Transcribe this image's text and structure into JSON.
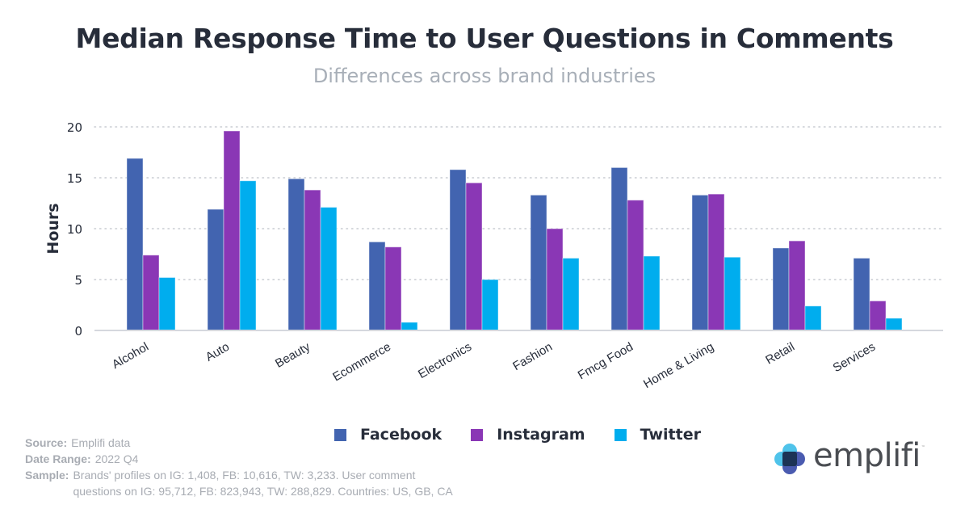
{
  "chart_data": {
    "type": "bar",
    "title": "Median Response Time to User Questions in Comments",
    "subtitle": "Differences across brand industries",
    "xlabel": "",
    "ylabel": "Hours",
    "ylim": [
      0,
      20
    ],
    "yticks": [
      0,
      5,
      10,
      15,
      20
    ],
    "grid": true,
    "legend_position": "bottom",
    "categories": [
      "Alcohol",
      "Auto",
      "Beauty",
      "Ecommerce",
      "Electronics",
      "Fashion",
      "Fmcg Food",
      "Home & Living",
      "Retail",
      "Services"
    ],
    "series": [
      {
        "name": "Facebook",
        "color": "#4264b0",
        "values": [
          16.9,
          11.9,
          14.9,
          8.7,
          15.8,
          13.3,
          16.0,
          13.3,
          8.1,
          7.1
        ]
      },
      {
        "name": "Instagram",
        "color": "#8a37b5",
        "values": [
          7.4,
          19.6,
          13.8,
          8.2,
          14.5,
          10.0,
          12.8,
          13.4,
          8.8,
          2.9
        ]
      },
      {
        "name": "Twitter",
        "color": "#00adee",
        "values": [
          5.2,
          14.7,
          12.1,
          0.8,
          5.0,
          7.1,
          7.3,
          7.2,
          2.4,
          1.2
        ]
      }
    ]
  },
  "header": {
    "title": "Median Response Time to User Questions in Comments",
    "subtitle": "Differences across brand industries"
  },
  "legend": {
    "items": [
      {
        "label": "Facebook",
        "color": "#4264b0"
      },
      {
        "label": "Instagram",
        "color": "#8a37b5"
      },
      {
        "label": "Twitter",
        "color": "#00adee"
      }
    ]
  },
  "footer": {
    "source_key": "Source:",
    "source_val": "Emplifi data",
    "date_key": "Date Range:",
    "date_val": "2022 Q4",
    "sample_key": "Sample:",
    "sample_val": "Brands' profiles on IG: 1,408, FB: 10,616, TW: 3,233. User comment questions on IG: 95,712, FB: 823,943, TW: 288,829. Countries: US, GB, CA"
  },
  "logo": {
    "text": "emplifi",
    "tm": "™"
  }
}
